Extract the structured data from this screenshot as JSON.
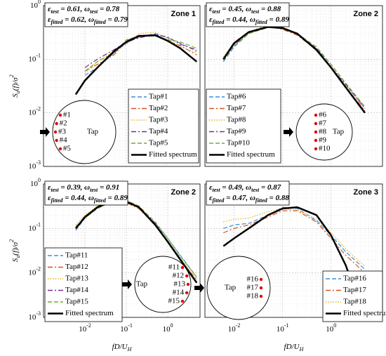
{
  "chart_data": [
    {
      "type": "line",
      "title": "Zone 1",
      "log_x": true,
      "log_y": true,
      "grid": true,
      "annotations": [
        [
          {
            "t": "ε"
          },
          {
            "t": "test",
            "sub": true
          },
          {
            "t": " = 0.61,  "
          },
          {
            "t": "ω"
          },
          {
            "t": "test",
            "sub": true
          },
          {
            "t": " = 0.78"
          }
        ],
        [
          {
            "t": "ε"
          },
          {
            "t": "fitted",
            "sub": true
          },
          {
            "t": " = 0.62, "
          },
          {
            "t": "ω"
          },
          {
            "t": "fitted",
            "sub": true
          },
          {
            "t": " = 0.79"
          }
        ]
      ],
      "xlim": [
        0.001,
        6
      ],
      "ylim": [
        0.001,
        1
      ],
      "yticks": [
        {
          "value": 0.001,
          "label": "10",
          "exp": "-3"
        },
        {
          "value": 0.01,
          "label": "10",
          "exp": "-2"
        },
        {
          "value": 0.1,
          "label": "10",
          "exp": "-1"
        },
        {
          "value": 1,
          "label": "10",
          "exp": "0"
        }
      ],
      "ylabel": [
        {
          "t": "S"
        },
        {
          "t": "u",
          "sub": true
        },
        {
          "t": "(f)/σ"
        },
        {
          "t": "2",
          "sup": true
        }
      ],
      "x": [
        0.006,
        0.01,
        0.02,
        0.05,
        0.1,
        0.2,
        0.5,
        1,
        2,
        5
      ],
      "series": [
        {
          "name": "Tap#1",
          "color": "#3d8fd9",
          "dash": "dashed",
          "values": [
            null,
            0.05,
            0.07,
            0.13,
            0.2,
            0.26,
            0.3,
            0.25,
            0.2,
            0.14
          ]
        },
        {
          "name": "Tap#2",
          "color": "#d9531e",
          "dash": "dashdot",
          "values": [
            null,
            0.06,
            0.08,
            0.12,
            0.22,
            0.28,
            0.28,
            0.22,
            0.18,
            0.12
          ]
        },
        {
          "name": "Tap#3",
          "color": "#e8b020",
          "dash": "dotted",
          "values": [
            null,
            0.055,
            0.09,
            0.14,
            0.19,
            0.3,
            0.32,
            0.24,
            0.17,
            0.13
          ]
        },
        {
          "name": "Tap#4",
          "color": "#7e2f8e",
          "dash": "dashdot",
          "values": [
            null,
            0.07,
            0.1,
            0.15,
            0.21,
            0.25,
            0.29,
            0.26,
            0.19,
            0.15
          ]
        },
        {
          "name": "Tap#5",
          "color": "#77ac30",
          "dash": "dashed",
          "values": [
            null,
            0.06,
            0.09,
            0.13,
            0.23,
            0.27,
            0.27,
            0.23,
            0.21,
            0.16
          ]
        },
        {
          "name": "Fitted spectrum",
          "color": "#000000",
          "dash": "solid",
          "width": 2.5,
          "values": [
            0.022,
            0.04,
            0.07,
            0.14,
            0.21,
            0.27,
            0.28,
            0.22,
            0.16,
            0.09
          ]
        }
      ],
      "inset": {
        "label": "Tap",
        "taps": [
          "#1",
          "#2",
          "#3",
          "#4",
          "#5"
        ]
      }
    },
    {
      "type": "line",
      "title": "Zone 2",
      "log_x": true,
      "log_y": true,
      "grid": true,
      "annotations": [
        [
          {
            "t": "ε"
          },
          {
            "t": "test",
            "sub": true
          },
          {
            "t": " = 0.45,  "
          },
          {
            "t": "ω"
          },
          {
            "t": "test",
            "sub": true
          },
          {
            "t": " = 0.88"
          }
        ],
        [
          {
            "t": "ε"
          },
          {
            "t": "fitted",
            "sub": true
          },
          {
            "t": " = 0.44, "
          },
          {
            "t": "ω"
          },
          {
            "t": "fitted",
            "sub": true
          },
          {
            "t": " = 0.89"
          }
        ]
      ],
      "xlim": [
        0.0025,
        11.5
      ],
      "ylim": [
        0.001,
        1
      ],
      "x": [
        0.006,
        0.01,
        0.02,
        0.05,
        0.1,
        0.2,
        0.5,
        1,
        2,
        5
      ],
      "series": [
        {
          "name": "Tap#6",
          "color": "#3d8fd9",
          "dash": "dashed",
          "values": [
            0.09,
            0.17,
            0.3,
            0.4,
            0.38,
            0.3,
            0.16,
            0.08,
            0.035,
            0.012
          ]
        },
        {
          "name": "Tap#7",
          "color": "#d9531e",
          "dash": "dashdot",
          "values": [
            0.1,
            0.19,
            0.31,
            0.42,
            0.36,
            0.28,
            0.15,
            0.07,
            0.03,
            0.011
          ]
        },
        {
          "name": "Tap#8",
          "color": "#e8b020",
          "dash": "dotted",
          "values": [
            0.11,
            0.2,
            0.33,
            0.41,
            0.37,
            0.31,
            0.14,
            0.075,
            0.032,
            0.013
          ]
        },
        {
          "name": "Tap#9",
          "color": "#7e2f8e",
          "dash": "dashdot",
          "values": [
            0.1,
            0.18,
            0.32,
            0.43,
            0.39,
            0.29,
            0.16,
            0.07,
            0.034,
            0.012
          ]
        },
        {
          "name": "Tap#10",
          "color": "#77ac30",
          "dash": "dashed",
          "values": [
            0.095,
            0.18,
            0.3,
            0.39,
            0.4,
            0.3,
            0.17,
            0.08,
            0.036,
            0.013
          ]
        },
        {
          "name": "Fitted spectrum",
          "color": "#000000",
          "dash": "solid",
          "width": 2.5,
          "values": [
            0.1,
            0.2,
            0.32,
            0.4,
            0.38,
            0.3,
            0.15,
            0.07,
            0.03,
            0.01
          ]
        }
      ],
      "inset": {
        "label": "Tap",
        "taps": [
          "#6",
          "#7",
          "#8",
          "#9",
          "#10"
        ]
      }
    },
    {
      "type": "line",
      "title": "Zone 2",
      "log_x": true,
      "log_y": true,
      "grid": true,
      "annotations": [
        [
          {
            "t": "ε"
          },
          {
            "t": "test",
            "sub": true
          },
          {
            "t": " = 0.39,  "
          },
          {
            "t": "ω"
          },
          {
            "t": "test",
            "sub": true
          },
          {
            "t": " = 0.91"
          }
        ],
        [
          {
            "t": "ε"
          },
          {
            "t": "fitted",
            "sub": true
          },
          {
            "t": " = 0.44, "
          },
          {
            "t": "ω"
          },
          {
            "t": "fitted",
            "sub": true
          },
          {
            "t": " = 0.89"
          }
        ]
      ],
      "xlim": [
        0.001,
        6
      ],
      "ylim": [
        0.001,
        1
      ],
      "xticks": [
        {
          "value": 0.01,
          "label": "10",
          "exp": "-2"
        },
        {
          "value": 0.1,
          "label": "10",
          "exp": "-1"
        },
        {
          "value": 1,
          "label": "10",
          "exp": "0"
        }
      ],
      "yticks": [
        {
          "value": 0.001,
          "label": "10",
          "exp": "-3"
        },
        {
          "value": 0.01,
          "label": "10",
          "exp": "-2"
        },
        {
          "value": 0.1,
          "label": "10",
          "exp": "-1"
        },
        {
          "value": 1,
          "label": "10",
          "exp": "0"
        }
      ],
      "xlabel": [
        {
          "t": "fD/U"
        },
        {
          "t": "H",
          "sub": true
        }
      ],
      "ylabel": [
        {
          "t": "S"
        },
        {
          "t": "u",
          "sub": true
        },
        {
          "t": "(f)/σ"
        },
        {
          "t": "2",
          "sup": true
        }
      ],
      "x": [
        0.006,
        0.01,
        0.02,
        0.05,
        0.1,
        0.2,
        0.5,
        1,
        2,
        5
      ],
      "series": [
        {
          "name": "Tap#11",
          "color": "#3d8fd9",
          "dash": "dashed",
          "values": [
            0.09,
            0.17,
            0.28,
            0.42,
            0.42,
            0.3,
            0.13,
            0.06,
            0.025,
            0.008
          ]
        },
        {
          "name": "Tap#12",
          "color": "#d9531e",
          "dash": "dashdot",
          "values": [
            0.1,
            0.19,
            0.3,
            0.45,
            0.38,
            0.28,
            0.12,
            0.05,
            0.02,
            0.007
          ]
        },
        {
          "name": "Tap#13",
          "color": "#e8b020",
          "dash": "dotted",
          "values": [
            0.12,
            0.2,
            0.32,
            0.44,
            0.4,
            0.31,
            0.11,
            0.055,
            0.022,
            0.007
          ]
        },
        {
          "name": "Tap#14",
          "color": "#7e2f8e",
          "dash": "dashdot",
          "values": [
            0.1,
            0.18,
            0.31,
            0.46,
            0.41,
            0.29,
            0.13,
            0.05,
            0.021,
            0.006
          ]
        },
        {
          "name": "Tap#15",
          "color": "#77ac30",
          "dash": "dashed",
          "values": [
            0.11,
            0.17,
            0.29,
            0.4,
            0.43,
            0.32,
            0.14,
            0.06,
            0.024,
            0.008
          ]
        },
        {
          "name": "Fitted spectrum",
          "color": "#000000",
          "dash": "solid",
          "width": 2.5,
          "values": [
            0.1,
            0.18,
            0.3,
            0.43,
            0.4,
            0.3,
            0.12,
            0.05,
            0.02,
            0.006
          ]
        }
      ],
      "inset": {
        "label": "Tap",
        "taps": [
          "#11",
          "#12",
          "#13",
          "#14",
          "#15"
        ]
      }
    },
    {
      "type": "line",
      "title": "Zone 3",
      "log_x": true,
      "log_y": true,
      "grid": true,
      "annotations": [
        [
          {
            "t": "ε"
          },
          {
            "t": "test",
            "sub": true
          },
          {
            "t": " = 0.49,  "
          },
          {
            "t": "ω"
          },
          {
            "t": "test",
            "sub": true
          },
          {
            "t": " = 0.87"
          }
        ],
        [
          {
            "t": "ε"
          },
          {
            "t": "fitted",
            "sub": true
          },
          {
            "t": " = 0.47, "
          },
          {
            "t": "ω"
          },
          {
            "t": "fitted",
            "sub": true
          },
          {
            "t": " = 0.88"
          }
        ]
      ],
      "xlim": [
        0.0025,
        11.5
      ],
      "ylim": [
        0.001,
        1
      ],
      "xticks": [
        {
          "value": 0.01,
          "label": "10",
          "exp": "-2"
        },
        {
          "value": 0.1,
          "label": "10",
          "exp": "-1"
        },
        {
          "value": 1,
          "label": "10",
          "exp": "0"
        }
      ],
      "xlabel": [
        {
          "t": "fD/U"
        },
        {
          "t": "H",
          "sub": true
        }
      ],
      "x": [
        0.006,
        0.01,
        0.02,
        0.05,
        0.1,
        0.2,
        0.5,
        1,
        2,
        5
      ],
      "series": [
        {
          "name": "Tap#16",
          "color": "#3d8fd9",
          "dash": "dashed",
          "values": [
            0.1,
            0.12,
            0.13,
            0.2,
            0.3,
            0.28,
            0.15,
            0.07,
            0.03,
            0.012
          ]
        },
        {
          "name": "Tap#17",
          "color": "#d9531e",
          "dash": "dashdot",
          "values": [
            0.08,
            0.1,
            0.12,
            0.18,
            0.25,
            0.25,
            0.14,
            0.06,
            0.025,
            0.01
          ]
        },
        {
          "name": "Tap#18",
          "color": "#e8b020",
          "dash": "dotted",
          "values": [
            0.14,
            0.16,
            0.17,
            0.24,
            0.28,
            0.26,
            0.16,
            0.08,
            0.035,
            0.014
          ]
        },
        {
          "name": "Fitted spectrum",
          "color": "#000000",
          "dash": "solid",
          "width": 2.5,
          "values": [
            0.04,
            0.06,
            0.1,
            0.2,
            0.28,
            0.3,
            0.2,
            0.07,
            0.015,
            0.001
          ]
        }
      ],
      "inset": {
        "label": "Tap",
        "taps": [
          "#16",
          "#17",
          "#18"
        ]
      }
    }
  ]
}
